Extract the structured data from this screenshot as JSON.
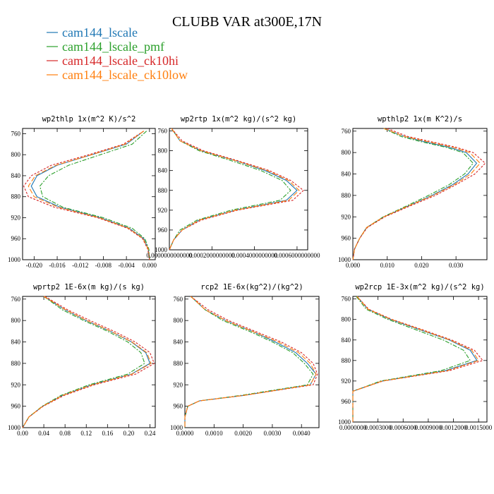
{
  "title": "CLUBB VAR at300E,17N",
  "legend": [
    {
      "name": "cam144_lscale",
      "color": "#1f77b4"
    },
    {
      "name": "cam144_lscale_pmf",
      "color": "#2ca02c"
    },
    {
      "name": "cam144_lscale_ck10hi",
      "color": "#d62728"
    },
    {
      "name": "cam144_lscale_ck10low",
      "color": "#ff7f0e"
    }
  ],
  "chart_data": [
    {
      "type": "line",
      "title": "wp2thlp  1x(m^2 K)/s^2",
      "xlim": [
        -0.022,
        0.001
      ],
      "ylim": [
        1000,
        750
      ],
      "xticks": [
        -0.02,
        -0.016,
        -0.012,
        -0.008,
        -0.004,
        0.0
      ],
      "xtick_labels": [
        "-0.020",
        "-0.016",
        "-0.012",
        "-0.008",
        "-0.004",
        "0.000"
      ],
      "yticks": [
        760,
        800,
        840,
        880,
        920,
        960,
        1000
      ],
      "y": [
        755,
        780,
        800,
        820,
        840,
        860,
        880,
        900,
        920,
        940,
        960,
        980,
        1000
      ],
      "series": [
        {
          "name": "cam144_lscale",
          "x": [
            -0.001,
            -0.004,
            -0.01,
            -0.016,
            -0.0195,
            -0.0205,
            -0.0195,
            -0.0155,
            -0.0085,
            -0.0035,
            -0.001,
            -0.0002,
            0.0
          ]
        },
        {
          "name": "cam144_lscale_pmf",
          "x": [
            -0.0005,
            -0.003,
            -0.0085,
            -0.014,
            -0.0175,
            -0.019,
            -0.0185,
            -0.015,
            -0.008,
            -0.003,
            -0.0008,
            -0.0001,
            0.0
          ]
        },
        {
          "name": "cam144_lscale_ck10hi",
          "x": [
            -0.001,
            -0.0045,
            -0.0105,
            -0.017,
            -0.0205,
            -0.0218,
            -0.021,
            -0.0165,
            -0.009,
            -0.0038,
            -0.0012,
            -0.0003,
            0.0
          ]
        },
        {
          "name": "cam144_lscale_ck10low",
          "x": [
            -0.001,
            -0.0042,
            -0.01,
            -0.0162,
            -0.0198,
            -0.021,
            -0.02,
            -0.0158,
            -0.0087,
            -0.0036,
            -0.0011,
            -0.0002,
            0.0
          ]
        }
      ]
    },
    {
      "type": "line",
      "title": "wp2rtp  1x(m^2 kg)/(s^2 kg)",
      "xlim": [
        0.0,
        0.00065
      ],
      "ylim": [
        1000,
        755
      ],
      "xticks": [
        0.0,
        0.0002,
        0.0004,
        0.0006
      ],
      "xtick_labels": [
        "0.0000000000000",
        "0.0002000000000",
        "0.0004000000000",
        "0.0006000000000"
      ],
      "yticks": [
        760,
        800,
        840,
        880,
        920,
        960,
        1000
      ],
      "y": [
        755,
        780,
        800,
        820,
        840,
        860,
        880,
        900,
        920,
        940,
        960,
        980,
        1000
      ],
      "series": [
        {
          "name": "cam144_lscale",
          "x": [
            1e-05,
            5e-05,
            0.00015,
            0.00031,
            0.00045,
            0.00055,
            0.0006,
            0.00055,
            0.00031,
            0.00014,
            6e-05,
            2e-05,
            0.0
          ]
        },
        {
          "name": "cam144_lscale_pmf",
          "x": [
            1e-05,
            5e-05,
            0.00014,
            0.00029,
            0.00043,
            0.00053,
            0.00057,
            0.00052,
            0.00029,
            0.00013,
            5e-05,
            2e-05,
            0.0
          ]
        },
        {
          "name": "cam144_lscale_ck10hi",
          "x": [
            1e-05,
            6e-05,
            0.00016,
            0.00032,
            0.00047,
            0.00057,
            0.00063,
            0.00058,
            0.00032,
            0.00015,
            6e-05,
            2e-05,
            0.0
          ]
        },
        {
          "name": "cam144_lscale_ck10low",
          "x": [
            1e-05,
            5e-05,
            0.00015,
            0.00031,
            0.00046,
            0.00056,
            0.00061,
            0.00056,
            0.00031,
            0.00014,
            6e-05,
            2e-05,
            0.0
          ]
        }
      ]
    },
    {
      "type": "line",
      "title": "wpthlp2  1x(m K^2)/s",
      "xlim": [
        0.0,
        0.039
      ],
      "ylim": [
        1000,
        755
      ],
      "xticks": [
        0.0,
        0.01,
        0.02,
        0.03
      ],
      "xtick_labels": [
        "0.000",
        "0.010",
        "0.020",
        "0.030"
      ],
      "yticks": [
        760,
        800,
        840,
        880,
        920,
        960,
        1000
      ],
      "y": [
        755,
        770,
        780,
        790,
        800,
        820,
        840,
        860,
        880,
        900,
        920,
        940,
        960,
        980,
        1000
      ],
      "series": [
        {
          "name": "cam144_lscale",
          "x": [
            0.009,
            0.015,
            0.021,
            0.028,
            0.033,
            0.036,
            0.0335,
            0.029,
            0.023,
            0.016,
            0.009,
            0.004,
            0.002,
            0.0005,
            0.0
          ]
        },
        {
          "name": "cam144_lscale_pmf",
          "x": [
            0.009,
            0.014,
            0.02,
            0.027,
            0.032,
            0.035,
            0.0325,
            0.028,
            0.022,
            0.0155,
            0.0088,
            0.004,
            0.002,
            0.0005,
            0.0
          ]
        },
        {
          "name": "cam144_lscale_ck10hi",
          "x": [
            0.01,
            0.016,
            0.023,
            0.03,
            0.035,
            0.0385,
            0.0355,
            0.03,
            0.024,
            0.0165,
            0.0093,
            0.0042,
            0.002,
            0.0005,
            0.0
          ]
        },
        {
          "name": "cam144_lscale_ck10low",
          "x": [
            0.009,
            0.015,
            0.022,
            0.029,
            0.034,
            0.037,
            0.0343,
            0.0295,
            0.0233,
            0.016,
            0.009,
            0.004,
            0.002,
            0.0005,
            0.0
          ]
        }
      ]
    },
    {
      "type": "line",
      "title": "wprtp2  1E-6x(m kg)/(s kg)",
      "xlim": [
        0.0,
        0.25
      ],
      "ylim": [
        1000,
        755
      ],
      "xticks": [
        0.0,
        0.04,
        0.08,
        0.12,
        0.16,
        0.2,
        0.24
      ],
      "xtick_labels": [
        "0.00",
        "0.04",
        "0.08",
        "0.12",
        "0.16",
        "0.20",
        "0.24"
      ],
      "yticks": [
        760,
        800,
        840,
        880,
        920,
        960,
        1000
      ],
      "y": [
        755,
        780,
        800,
        820,
        840,
        860,
        880,
        900,
        920,
        940,
        960,
        980,
        1000
      ],
      "series": [
        {
          "name": "cam144_lscale",
          "x": [
            0.04,
            0.08,
            0.12,
            0.165,
            0.205,
            0.232,
            0.24,
            0.205,
            0.13,
            0.075,
            0.038,
            0.012,
            0.0
          ]
        },
        {
          "name": "cam144_lscale_pmf",
          "x": [
            0.04,
            0.075,
            0.115,
            0.16,
            0.198,
            0.223,
            0.23,
            0.198,
            0.125,
            0.072,
            0.037,
            0.012,
            0.0
          ]
        },
        {
          "name": "cam144_lscale_ck10hi",
          "x": [
            0.042,
            0.085,
            0.127,
            0.172,
            0.212,
            0.24,
            0.248,
            0.213,
            0.135,
            0.078,
            0.039,
            0.012,
            0.0
          ]
        },
        {
          "name": "cam144_lscale_ck10low",
          "x": [
            0.04,
            0.081,
            0.121,
            0.166,
            0.206,
            0.234,
            0.242,
            0.206,
            0.131,
            0.075,
            0.038,
            0.012,
            0.0
          ]
        }
      ]
    },
    {
      "type": "line",
      "title": "rcp2  1E-6x(kg^2)/(kg^2)",
      "xlim": [
        0.0,
        0.0046
      ],
      "ylim": [
        1000,
        755
      ],
      "xticks": [
        0.0,
        0.001,
        0.002,
        0.003,
        0.004
      ],
      "xtick_labels": [
        "0.0000",
        "0.0010",
        "0.0020",
        "0.0030",
        "0.0040"
      ],
      "yticks": [
        760,
        800,
        840,
        880,
        920,
        960,
        1000
      ],
      "y": [
        755,
        780,
        800,
        820,
        840,
        860,
        880,
        900,
        920,
        940,
        950,
        960,
        980,
        1000
      ],
      "series": [
        {
          "name": "cam144_lscale",
          "x": [
            0.0002,
            0.0007,
            0.0014,
            0.0023,
            0.0031,
            0.0038,
            0.0042,
            0.0045,
            0.0043,
            0.002,
            0.0005,
            0.0001,
            0.0,
            0.0
          ]
        },
        {
          "name": "cam144_lscale_pmf",
          "x": [
            0.0002,
            0.0007,
            0.0013,
            0.0022,
            0.003,
            0.0037,
            0.0041,
            0.0044,
            0.0042,
            0.0019,
            0.0005,
            0.0001,
            0.0,
            0.0
          ]
        },
        {
          "name": "cam144_lscale_ck10hi",
          "x": [
            0.0002,
            0.0008,
            0.0015,
            0.0024,
            0.0033,
            0.004,
            0.0044,
            0.00455,
            0.0044,
            0.002,
            0.0005,
            0.0001,
            0.0,
            0.0
          ]
        },
        {
          "name": "cam144_lscale_ck10low",
          "x": [
            0.0002,
            0.0007,
            0.0014,
            0.0023,
            0.0032,
            0.0039,
            0.0043,
            0.0045,
            0.0043,
            0.002,
            0.0005,
            0.0001,
            0.0,
            0.0
          ]
        }
      ]
    },
    {
      "type": "line",
      "title": "wp2rcp  1E-3x(m^2 kg)/(s^2 kg)",
      "xlim": [
        0.0,
        0.0016
      ],
      "ylim": [
        1000,
        755
      ],
      "xticks": [
        0.0,
        0.0003,
        0.0006,
        0.0009,
        0.0012,
        0.0015
      ],
      "xtick_labels": [
        "0.0000000",
        "0.0003000",
        "0.0006000",
        "0.0009000",
        "0.0012000",
        "0.0015000"
      ],
      "yticks": [
        760,
        800,
        840,
        880,
        920,
        960,
        1000
      ],
      "y": [
        755,
        780,
        800,
        820,
        840,
        860,
        880,
        900,
        920,
        940,
        960,
        980,
        1000
      ],
      "series": [
        {
          "name": "cam144_lscale",
          "x": [
            5e-05,
            0.00018,
            0.00045,
            0.0008,
            0.00115,
            0.0014,
            0.00148,
            0.0011,
            0.00035,
            0.0,
            0.0,
            0.0,
            0.0
          ]
        },
        {
          "name": "cam144_lscale_pmf",
          "x": [
            4e-05,
            0.00016,
            0.00042,
            0.00075,
            0.00108,
            0.00132,
            0.0014,
            0.00105,
            0.00033,
            0.0,
            0.0,
            0.0,
            0.0
          ]
        },
        {
          "name": "cam144_lscale_ck10hi",
          "x": [
            5e-05,
            0.00019,
            0.00047,
            0.00083,
            0.00118,
            0.00145,
            0.00155,
            0.00115,
            0.00036,
            0.0,
            0.0,
            0.0,
            0.0
          ]
        },
        {
          "name": "cam144_lscale_ck10low",
          "x": [
            5e-05,
            0.00018,
            0.00046,
            0.00081,
            0.00116,
            0.00142,
            0.0015,
            0.00112,
            0.00035,
            0.0,
            0.0,
            0.0,
            0.0
          ]
        }
      ]
    }
  ]
}
